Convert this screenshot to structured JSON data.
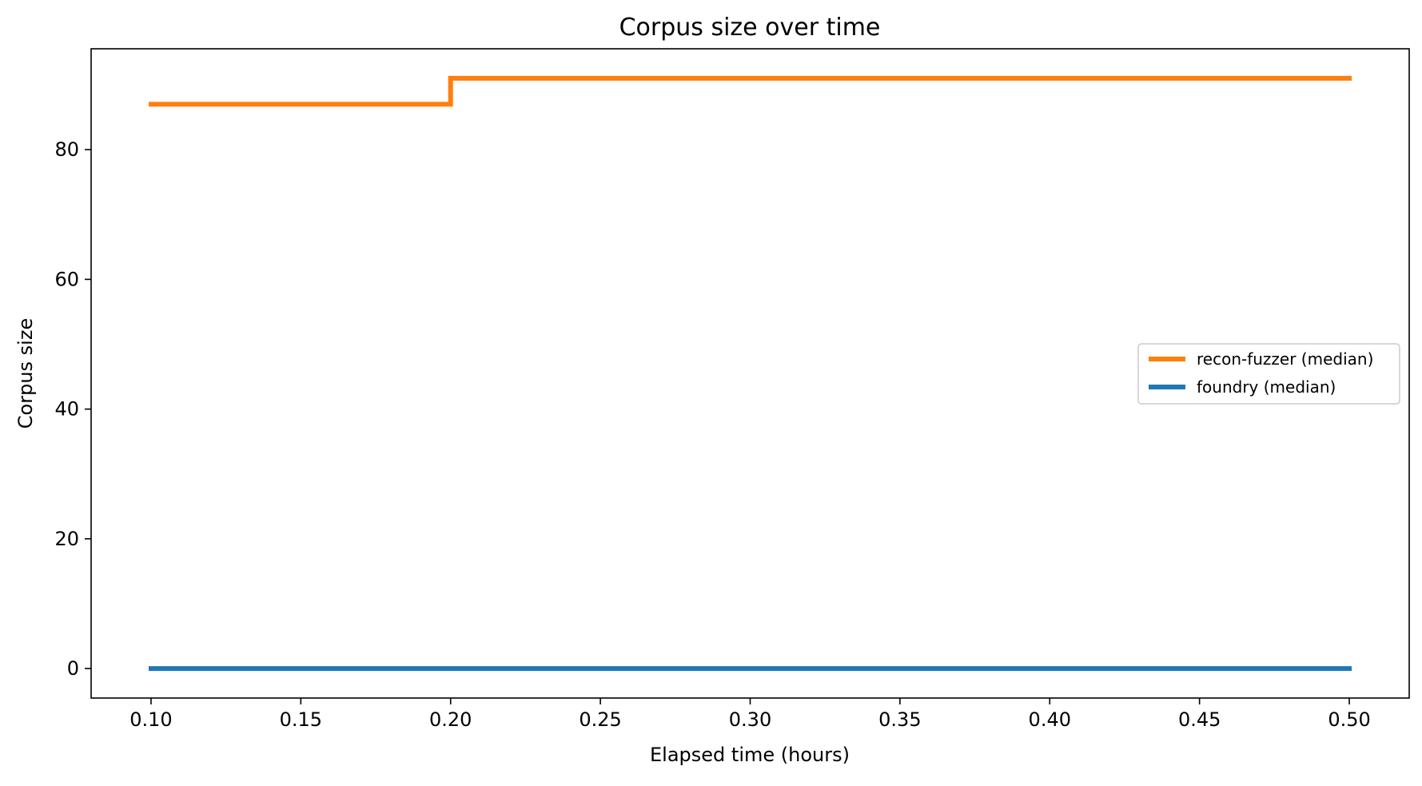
{
  "chart_data": {
    "type": "line",
    "title": "Corpus size over time",
    "xlabel": "Elapsed time (hours)",
    "ylabel": "Corpus size",
    "xlim": [
      0.08,
      0.52
    ],
    "ylim": [
      -4.55,
      95.55
    ],
    "x_ticks": [
      {
        "value": 0.1,
        "label": "0.10"
      },
      {
        "value": 0.15,
        "label": "0.15"
      },
      {
        "value": 0.2,
        "label": "0.20"
      },
      {
        "value": 0.25,
        "label": "0.25"
      },
      {
        "value": 0.3,
        "label": "0.30"
      },
      {
        "value": 0.35,
        "label": "0.35"
      },
      {
        "value": 0.4,
        "label": "0.40"
      },
      {
        "value": 0.45,
        "label": "0.45"
      },
      {
        "value": 0.5,
        "label": "0.50"
      }
    ],
    "y_ticks": [
      {
        "value": 0,
        "label": "0"
      },
      {
        "value": 20,
        "label": "20"
      },
      {
        "value": 40,
        "label": "40"
      },
      {
        "value": 60,
        "label": "60"
      },
      {
        "value": 80,
        "label": "80"
      }
    ],
    "grid": false,
    "step": "post",
    "legend_position": "center-right",
    "series": [
      {
        "name": "recon-fuzzer (median)",
        "color": "#ff7f0e",
        "x": [
          0.1,
          0.2,
          0.5
        ],
        "y": [
          87,
          91,
          91
        ]
      },
      {
        "name": "foundry (median)",
        "color": "#1f77b4",
        "x": [
          0.1,
          0.5
        ],
        "y": [
          0,
          0
        ]
      }
    ]
  }
}
